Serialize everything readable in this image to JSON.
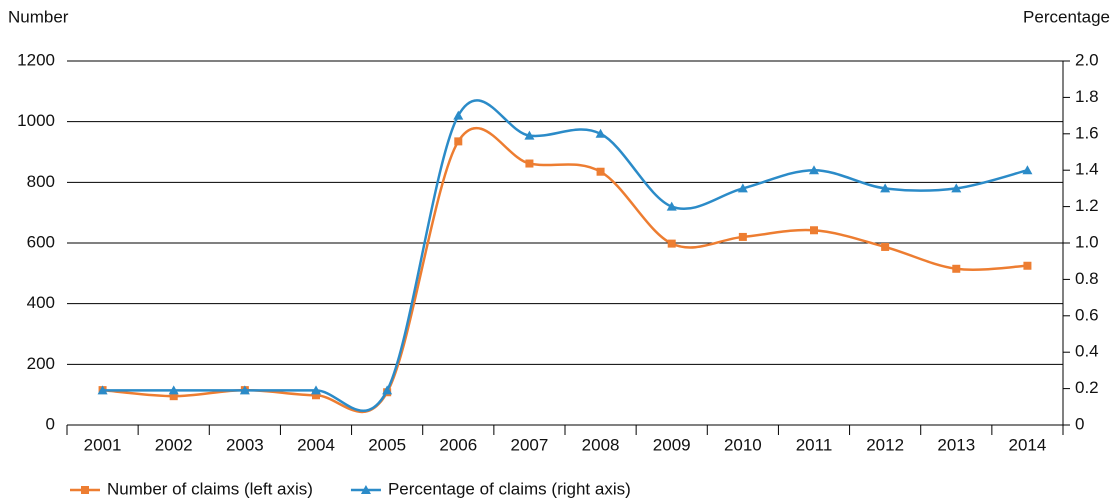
{
  "chart_data": {
    "type": "line",
    "y_label": "Number",
    "y2_label": "Percentage",
    "categories": [
      "2001",
      "2002",
      "2003",
      "2004",
      "2005",
      "2006",
      "2007",
      "2008",
      "2009",
      "2010",
      "2011",
      "2012",
      "2013",
      "2014"
    ],
    "series": [
      {
        "name": "Number of claims (left axis)",
        "color": "#ed7d31",
        "marker": "square",
        "values": [
          115,
          95,
          115,
          98,
          108,
          935,
          862,
          835,
          598,
          620,
          642,
          587,
          515,
          525
        ]
      },
      {
        "name": "Percentage of claims (right axis)",
        "color": "#2b8bc8",
        "marker": "triangle",
        "axis": "y2",
        "values": [
          0.19,
          0.19,
          0.19,
          0.19,
          0.19,
          1.7,
          1.59,
          1.6,
          1.2,
          1.3,
          1.4,
          1.3,
          1.3,
          1.4
        ]
      }
    ],
    "ylim": [
      0,
      1200
    ],
    "yticks": [
      0,
      200,
      400,
      600,
      800,
      1000,
      1200
    ],
    "y2lim": [
      0,
      2
    ],
    "y2ticks": [
      0,
      0.2,
      0.4,
      0.6,
      0.8,
      {
        "value": 1,
        "label": "1.0"
      },
      1.2,
      1.4,
      1.6,
      1.8,
      {
        "value": 2,
        "label": "2.0"
      }
    ],
    "grid": true,
    "smooth": true,
    "legend": "bottom"
  }
}
